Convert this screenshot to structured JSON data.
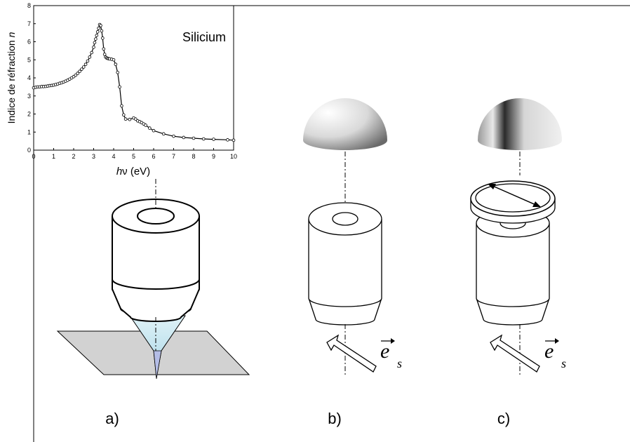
{
  "chart_data": {
    "type": "scatter",
    "title": "Silicium",
    "xlabel_italic": "h",
    "xlabel_greek": "ν",
    "xlabel_unit": " (eV)",
    "ylabel": "Indice de réfraction ",
    "ylabel_italic": "n",
    "xlim": [
      0,
      10
    ],
    "ylim": [
      0,
      8
    ],
    "xticks": [
      0,
      1,
      2,
      3,
      4,
      5,
      6,
      7,
      8,
      9,
      10
    ],
    "yticks": [
      0,
      1,
      2,
      3,
      4,
      5,
      6,
      7,
      8
    ],
    "grid": false,
    "series": [
      {
        "markers": "open-circle",
        "x": [
          0.0,
          0.1,
          0.2,
          0.3,
          0.4,
          0.5,
          0.6,
          0.7,
          0.8,
          0.9,
          1.0,
          1.1,
          1.2,
          1.3,
          1.4,
          1.5,
          1.6,
          1.7,
          1.8,
          1.9,
          2.0,
          2.1,
          2.2,
          2.3,
          2.4,
          2.5,
          2.6,
          2.7,
          2.8,
          2.9,
          3.0,
          3.05,
          3.1,
          3.15,
          3.2,
          3.25,
          3.3,
          3.35,
          3.4,
          3.45,
          3.5,
          3.55,
          3.6,
          3.65,
          3.7,
          3.75,
          3.8,
          3.9,
          4.0,
          4.1,
          4.2,
          4.3,
          4.4,
          4.5,
          4.6,
          4.8,
          5.0,
          5.1,
          5.2,
          5.3,
          5.4,
          5.5,
          5.6,
          5.8,
          6.0,
          6.5,
          7.0,
          7.5,
          8.0,
          8.5,
          9.0,
          9.7,
          10.0
        ],
        "y": [
          3.45,
          3.48,
          3.5,
          3.5,
          3.52,
          3.52,
          3.53,
          3.55,
          3.57,
          3.58,
          3.6,
          3.63,
          3.66,
          3.7,
          3.73,
          3.77,
          3.82,
          3.87,
          3.93,
          4.0,
          4.07,
          4.15,
          4.25,
          4.36,
          4.48,
          4.6,
          4.75,
          4.93,
          5.15,
          5.4,
          5.7,
          5.95,
          6.15,
          6.35,
          6.55,
          6.75,
          6.95,
          6.9,
          6.6,
          6.2,
          5.6,
          5.3,
          5.15,
          5.1,
          5.08,
          5.06,
          5.05,
          5.03,
          5.0,
          4.75,
          4.3,
          3.5,
          2.45,
          1.95,
          1.72,
          1.7,
          1.78,
          1.72,
          1.62,
          1.58,
          1.52,
          1.45,
          1.38,
          1.22,
          1.08,
          0.9,
          0.77,
          0.7,
          0.66,
          0.62,
          0.6,
          0.57,
          0.55
        ]
      }
    ]
  },
  "labels": {
    "panel_a": "a)",
    "panel_b": "b)",
    "panel_c": "c)",
    "vector_e": "e",
    "vector_sub": "s"
  }
}
